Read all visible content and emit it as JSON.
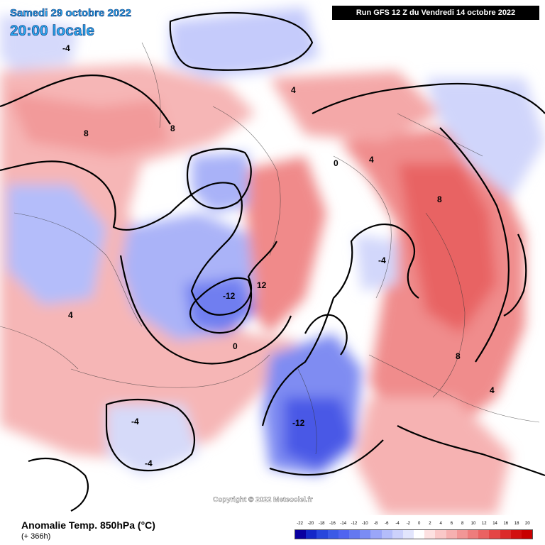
{
  "header": {
    "date_line": "Samedi 29 octobre 2022",
    "time_line": "20:00 locale",
    "run_banner": "Run GFS 12 Z du Vendredi 14 octobre 2022"
  },
  "footer": {
    "product_title": "Anomalie Temp. 850hPa (°C)",
    "lead_time": "(+ 366h)",
    "copyright": "Copyright © 2022 Meteociel.fr"
  },
  "legend": {
    "labels": [
      "-22",
      "-20",
      "-18",
      "-16",
      "-14",
      "-12",
      "-10",
      "-8",
      "-6",
      "-4",
      "-2",
      "0",
      "2",
      "4",
      "6",
      "8",
      "10",
      "12",
      "14",
      "16",
      "18",
      "20"
    ],
    "colors": [
      "#0a00a0",
      "#1428c8",
      "#2846dc",
      "#3c5ae6",
      "#5064f0",
      "#6478f0",
      "#7a8cf5",
      "#9aa6f8",
      "#b4bdfa",
      "#ccd1fb",
      "#e2e5fc",
      "#ffffff",
      "#fde1e1",
      "#fac8c8",
      "#f6b0b0",
      "#f29696",
      "#ee7c7c",
      "#ea6262",
      "#e44646",
      "#dc2a2a",
      "#d21010",
      "#c80000"
    ]
  },
  "map_labels": [
    {
      "text": "-12",
      "color": "#000000"
    },
    {
      "text": "-12",
      "color": "#000000"
    },
    {
      "text": "12",
      "color": "#000000"
    },
    {
      "text": "-4",
      "color": "#000000"
    },
    {
      "text": "-4",
      "color": "#000000"
    },
    {
      "text": "-4",
      "color": "#000000"
    },
    {
      "text": "-4",
      "color": "#000000"
    },
    {
      "text": "8",
      "color": "#000000"
    },
    {
      "text": "8",
      "color": "#000000"
    },
    {
      "text": "8",
      "color": "#000000"
    },
    {
      "text": "8",
      "color": "#000000"
    },
    {
      "text": "4",
      "color": "#000000"
    },
    {
      "text": "4",
      "color": "#000000"
    },
    {
      "text": "4",
      "color": "#000000"
    },
    {
      "text": "4",
      "color": "#000000"
    },
    {
      "text": "0",
      "color": "#000000"
    },
    {
      "text": "0",
      "color": "#000000"
    }
  ]
}
